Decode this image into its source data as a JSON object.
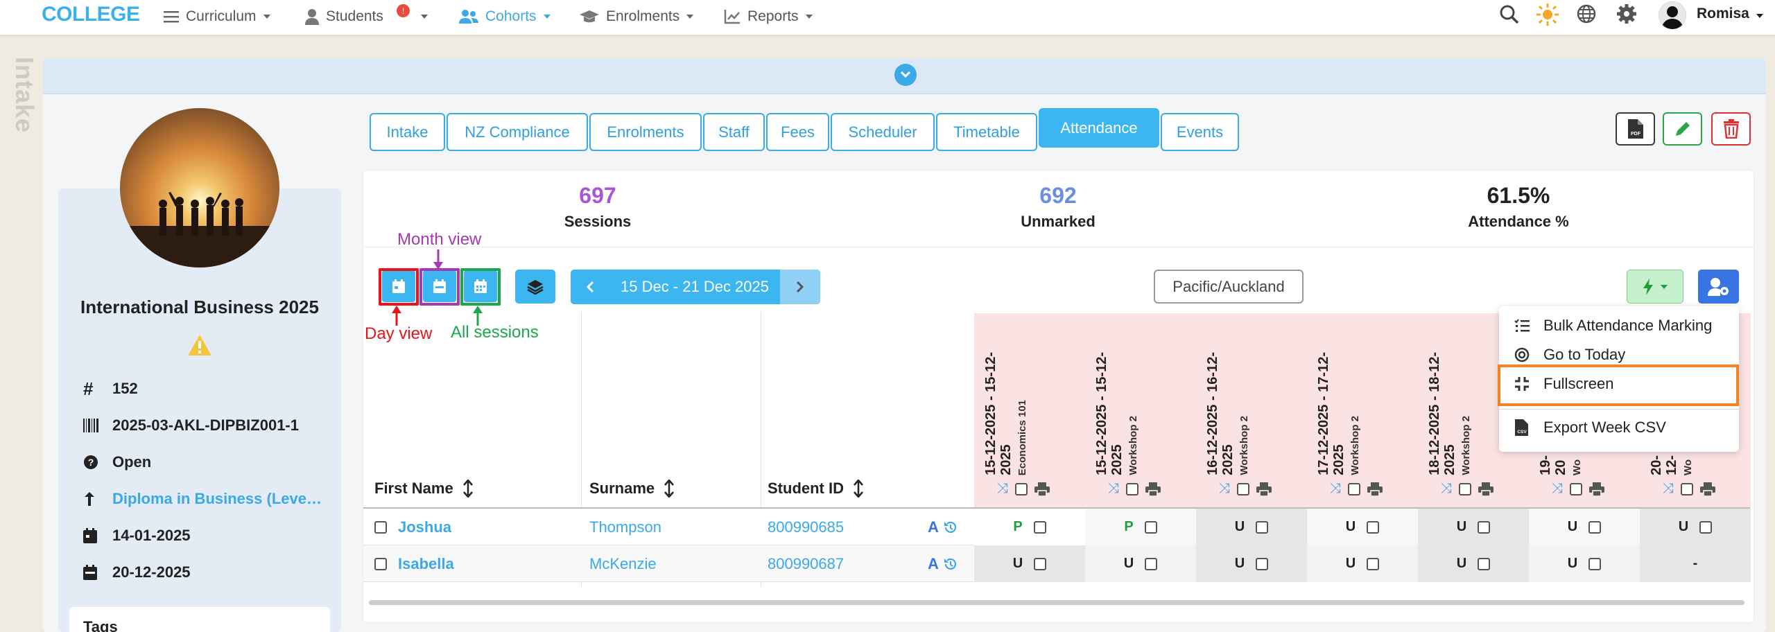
{
  "brand": "COLLEGE",
  "nav": {
    "curriculum": "Curriculum",
    "students": "Students",
    "students_badge": "!",
    "cohorts": "Cohorts",
    "enrolments": "Enrolments",
    "reports": "Reports",
    "user": "Romisa"
  },
  "side_label": "Intake",
  "profile": {
    "name": "International Business 2025",
    "id": "152",
    "code": "2025-03-AKL-DIPBIZ001-1",
    "status": "Open",
    "program": "Diploma in Business (Leve…",
    "start": "14-01-2025",
    "end": "20-12-2025",
    "tags_title": "Tags"
  },
  "tabs": [
    "Intake",
    "NZ Compliance",
    "Enrolments",
    "Staff",
    "Fees",
    "Scheduler",
    "Timetable",
    "Attendance",
    "Events"
  ],
  "stats": {
    "sessions_value": "697",
    "sessions_label": "Sessions",
    "unmarked_value": "692",
    "unmarked_label": "Unmarked",
    "attendance_value": "61.5%",
    "attendance_label": "Attendance %"
  },
  "annotations": {
    "month_view": "Month view",
    "day_view": "Day view",
    "all_sessions": "All sessions"
  },
  "week_label": "15 Dec - 21 Dec 2025",
  "timezone": "Pacific/Auckland",
  "menu": {
    "bulk": "Bulk Attendance Marking",
    "today": "Go to Today",
    "fullscreen": "Fullscreen",
    "export": "Export Week CSV"
  },
  "columns": {
    "first_name": "First Name",
    "surname": "Surname",
    "student_id": "Student ID"
  },
  "sessions": [
    {
      "date": "15-12-2025 - 15-12-",
      "year": "2025",
      "name": "Economics 101"
    },
    {
      "date": "15-12-2025 - 15-12-",
      "year": "2025",
      "name": "Workshop 2"
    },
    {
      "date": "16-12-2025 - 16-12-",
      "year": "2025",
      "name": "Workshop 2"
    },
    {
      "date": "17-12-2025 - 17-12-",
      "year": "2025",
      "name": "Workshop 2"
    },
    {
      "date": "18-12-2025 - 18-12-",
      "year": "2025",
      "name": "Workshop 2"
    },
    {
      "date": "19-",
      "year": "20",
      "name": "Wo"
    },
    {
      "date": "20-",
      "year": "12-",
      "name": "Wo"
    }
  ],
  "students": [
    {
      "first": "Joshua",
      "surname": "Thompson",
      "sid": "800990685",
      "flag": "A",
      "marks": [
        "P",
        "P",
        "U",
        "U",
        "U",
        "U",
        "U"
      ]
    },
    {
      "first": "Isabella",
      "surname": "McKenzie",
      "sid": "800990687",
      "flag": "A",
      "marks": [
        "U",
        "U",
        "U",
        "U",
        "U",
        "U",
        "-"
      ]
    }
  ],
  "colors": {
    "accent": "#3bb6f0",
    "present": "#1e9e3c",
    "session_bg": "#fbe3e3",
    "highlight": "#f58220"
  }
}
